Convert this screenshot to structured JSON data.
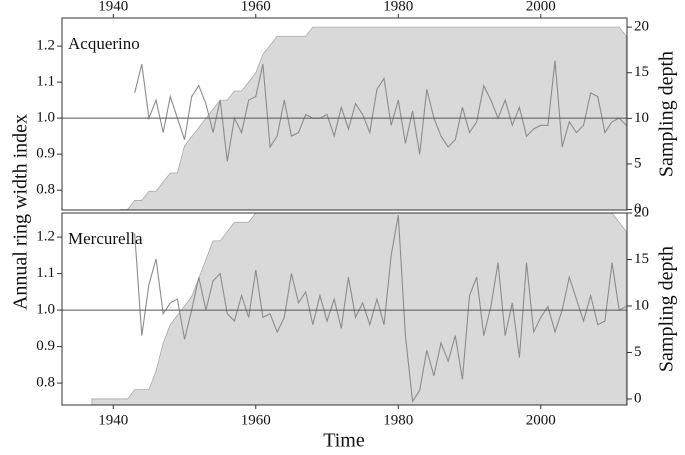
{
  "x_label": "Time",
  "y_label": "Annual ring width index",
  "chart_data": [
    {
      "type": "line",
      "title": "Acquerino",
      "y2label": "Sampling depth",
      "xaxis_position": "top",
      "x": [
        1941,
        1942,
        1943,
        1944,
        1945,
        1946,
        1947,
        1948,
        1949,
        1950,
        1951,
        1952,
        1953,
        1954,
        1955,
        1956,
        1957,
        1958,
        1959,
        1960,
        1961,
        1962,
        1963,
        1964,
        1965,
        1966,
        1967,
        1968,
        1969,
        1970,
        1971,
        1972,
        1973,
        1974,
        1975,
        1976,
        1977,
        1978,
        1979,
        1980,
        1981,
        1982,
        1983,
        1984,
        1985,
        1986,
        1987,
        1988,
        1989,
        1990,
        1991,
        1992,
        1993,
        1994,
        1995,
        1996,
        1997,
        1998,
        1999,
        2000,
        2001,
        2002,
        2003,
        2004,
        2005,
        2006,
        2007,
        2008,
        2009,
        2010,
        2011,
        2012
      ],
      "series": [
        {
          "type": "area",
          "axis": "y2",
          "color": "#d9d9d9",
          "values": [
            0,
            0,
            1,
            1,
            2,
            2,
            3,
            4,
            4,
            7,
            8,
            9,
            10,
            11,
            12,
            12,
            13,
            13,
            14,
            15,
            17,
            18,
            19,
            19,
            19,
            19,
            19,
            20,
            20,
            20,
            20,
            20,
            20,
            20,
            20,
            20,
            20,
            20,
            20,
            20,
            20,
            20,
            20,
            20,
            20,
            20,
            20,
            20,
            20,
            20,
            20,
            20,
            20,
            20,
            20,
            20,
            20,
            20,
            20,
            20,
            20,
            20,
            20,
            20,
            20,
            20,
            20,
            20,
            20,
            20,
            20,
            19
          ]
        },
        {
          "type": "line",
          "color": "#8c8c8c",
          "values": [
            null,
            null,
            1.07,
            1.15,
            1.0,
            1.05,
            0.96,
            1.06,
            1.0,
            0.94,
            1.06,
            1.09,
            1.04,
            0.96,
            1.05,
            0.88,
            1.0,
            0.96,
            1.05,
            1.06,
            1.15,
            0.92,
            0.95,
            1.05,
            0.95,
            0.96,
            1.01,
            1.0,
            1.0,
            1.01,
            0.95,
            1.03,
            0.97,
            1.04,
            1.01,
            0.96,
            1.08,
            1.11,
            0.98,
            1.05,
            0.93,
            1.02,
            0.9,
            1.08,
            1.0,
            0.95,
            0.92,
            0.94,
            1.03,
            0.96,
            0.99,
            1.09,
            1.05,
            1.0,
            1.05,
            0.98,
            1.03,
            0.95,
            0.97,
            0.98,
            0.98,
            1.16,
            0.92,
            0.99,
            0.96,
            0.98,
            1.07,
            1.06,
            0.96,
            0.99,
            1.0,
            0.98
          ]
        }
      ],
      "hline": 1,
      "xlim": [
        1932.8,
        2012.1
      ],
      "xticks": [
        1940,
        1960,
        1980,
        2000
      ],
      "ylim": [
        0.745,
        1.278
      ],
      "yticks": [
        0.8,
        0.9,
        {
          "value": 1,
          "label": "1.0"
        },
        1.1,
        1.2
      ],
      "y2lim": [
        -0.05,
        21
      ],
      "y2ticks": [
        0,
        5,
        10,
        15,
        20
      ]
    },
    {
      "type": "line",
      "title": "Mercurella",
      "y2label": "Sampling depth",
      "xaxis_position": "bottom",
      "x": [
        1937,
        1938,
        1939,
        1940,
        1941,
        1942,
        1943,
        1944,
        1945,
        1946,
        1947,
        1948,
        1949,
        1950,
        1951,
        1952,
        1953,
        1954,
        1955,
        1956,
        1957,
        1958,
        1959,
        1960,
        1961,
        1962,
        1963,
        1964,
        1965,
        1966,
        1967,
        1968,
        1969,
        1970,
        1971,
        1972,
        1973,
        1974,
        1975,
        1976,
        1977,
        1978,
        1979,
        1980,
        1981,
        1982,
        1983,
        1984,
        1985,
        1986,
        1987,
        1988,
        1989,
        1990,
        1991,
        1992,
        1993,
        1994,
        1995,
        1996,
        1997,
        1998,
        1999,
        2000,
        2001,
        2002,
        2003,
        2004,
        2005,
        2006,
        2007,
        2008,
        2009,
        2010,
        2011,
        2012
      ],
      "series": [
        {
          "type": "area",
          "axis": "y2",
          "color": "#d9d9d9",
          "values": [
            0,
            0,
            0,
            0,
            0,
            0,
            1,
            1,
            1,
            3,
            6,
            8,
            9,
            10,
            11,
            13,
            15,
            17,
            17,
            18,
            19,
            19,
            19,
            20,
            20,
            20,
            20,
            20,
            20,
            20,
            20,
            20,
            20,
            20,
            20,
            20,
            20,
            20,
            20,
            20,
            20,
            20,
            20,
            20,
            20,
            20,
            20,
            20,
            20,
            20,
            20,
            20,
            20,
            20,
            20,
            20,
            20,
            20,
            20,
            20,
            20,
            20,
            20,
            20,
            20,
            20,
            20,
            20,
            20,
            20,
            20,
            20,
            20,
            20,
            19,
            18
          ]
        },
        {
          "type": "line",
          "color": "#8c8c8c",
          "values": [
            null,
            null,
            null,
            null,
            null,
            null,
            1.21,
            0.93,
            1.07,
            1.14,
            0.99,
            1.02,
            1.03,
            0.92,
            1.0,
            1.09,
            1.0,
            1.08,
            1.1,
            0.99,
            0.97,
            1.04,
            0.98,
            1.11,
            0.98,
            0.99,
            0.94,
            0.98,
            1.1,
            1.02,
            1.05,
            0.96,
            1.04,
            0.97,
            1.03,
            0.95,
            1.09,
            0.98,
            1.02,
            0.96,
            1.03,
            0.96,
            1.15,
            1.26,
            0.93,
            0.75,
            0.78,
            0.89,
            0.82,
            0.91,
            0.86,
            0.93,
            0.81,
            1.04,
            1.09,
            0.93,
            1.01,
            1.13,
            0.93,
            1.02,
            0.87,
            1.13,
            0.94,
            0.98,
            1.01,
            0.94,
            1.0,
            1.09,
            1.03,
            0.97,
            1.04,
            0.96,
            0.97,
            1.13,
            1.0,
            1.01
          ]
        }
      ],
      "hline": 1,
      "xlim": [
        1932.8,
        2012.1
      ],
      "xticks": [
        1940,
        1960,
        1980,
        2000
      ],
      "ylim": [
        0.74,
        1.266
      ],
      "yticks": [
        0.8,
        0.9,
        {
          "value": 1,
          "label": "1.0"
        },
        1.1,
        1.2
      ],
      "y2lim": [
        -0.65,
        20
      ],
      "y2ticks": [
        0,
        5,
        10,
        15,
        20
      ]
    }
  ]
}
